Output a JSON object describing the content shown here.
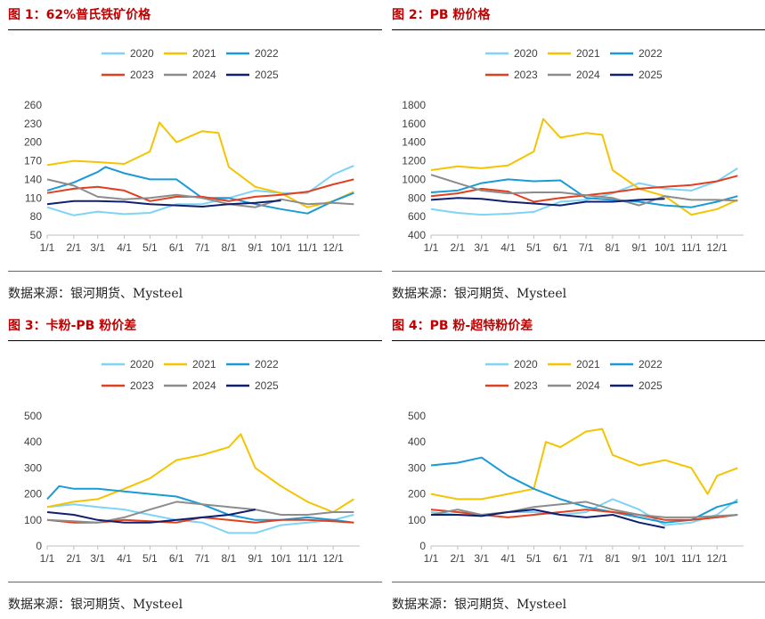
{
  "colors": {
    "2020": "#7fd3f5",
    "2021": "#f5c400",
    "2022": "#1b9ad6",
    "2023": "#e0401f",
    "2024": "#8c8c8c",
    "2025": "#102070",
    "title": "#c00000"
  },
  "source_text": "数据来源：银河期货、Mysteel",
  "chart_data": [
    {
      "type": "line",
      "title": "图 1：62%普氏铁矿价格",
      "source": "数据来源：银河期货、Mysteel",
      "x_ticks": [
        "1/1",
        "2/1",
        "3/1",
        "4/1",
        "5/1",
        "6/1",
        "7/1",
        "8/1",
        "9/1",
        "10/1",
        "11/1",
        "12/1"
      ],
      "y_ticks": [
        50,
        80,
        110,
        140,
        170,
        200,
        230,
        260
      ],
      "ylim": [
        50,
        260
      ],
      "legend": "top",
      "series": [
        {
          "name": "2020",
          "x": [
            "1/1",
            "2/1",
            "3/1",
            "4/1",
            "5/1",
            "6/1",
            "7/1",
            "8/1",
            "9/1",
            "10/1",
            "11/1",
            "12/1",
            "12/25"
          ],
          "values": [
            95,
            82,
            88,
            84,
            86,
            100,
            100,
            110,
            122,
            118,
            118,
            148,
            162
          ]
        },
        {
          "name": "2021",
          "x": [
            "1/1",
            "2/1",
            "3/1",
            "4/1",
            "5/1",
            "5/12",
            "6/1",
            "7/1",
            "7/20",
            "8/1",
            "9/1",
            "10/1",
            "11/1",
            "12/1",
            "12/25"
          ],
          "values": [
            163,
            170,
            168,
            165,
            185,
            232,
            200,
            218,
            215,
            160,
            128,
            118,
            95,
            105,
            120
          ]
        },
        {
          "name": "2022",
          "x": [
            "1/1",
            "2/1",
            "3/1",
            "3/10",
            "4/1",
            "5/1",
            "6/1",
            "7/1",
            "8/1",
            "9/1",
            "10/1",
            "11/1",
            "12/1",
            "12/25"
          ],
          "values": [
            122,
            135,
            152,
            160,
            150,
            140,
            140,
            110,
            110,
            100,
            92,
            85,
            105,
            118
          ]
        },
        {
          "name": "2023",
          "x": [
            "1/1",
            "2/1",
            "3/1",
            "4/1",
            "5/1",
            "6/1",
            "7/1",
            "8/1",
            "9/1",
            "10/1",
            "11/1",
            "12/1",
            "12/25"
          ],
          "values": [
            118,
            125,
            128,
            122,
            105,
            112,
            112,
            105,
            112,
            115,
            120,
            132,
            140
          ]
        },
        {
          "name": "2024",
          "x": [
            "1/1",
            "2/1",
            "3/1",
            "4/1",
            "5/1",
            "6/1",
            "7/1",
            "8/1",
            "9/1",
            "10/1",
            "11/1",
            "12/1",
            "12/25"
          ],
          "values": [
            140,
            130,
            112,
            108,
            110,
            115,
            110,
            100,
            95,
            108,
            100,
            102,
            100
          ]
        },
        {
          "name": "2025",
          "x": [
            "1/1",
            "2/1",
            "3/1",
            "4/1",
            "5/1",
            "6/1",
            "7/1",
            "8/1",
            "9/1",
            "10/1"
          ],
          "values": [
            100,
            105,
            105,
            104,
            100,
            98,
            96,
            100,
            102,
            106
          ]
        }
      ]
    },
    {
      "type": "line",
      "title": "图 2：PB 粉价格",
      "source": "数据来源：银河期货、Mysteel",
      "x_ticks": [
        "1/1",
        "2/1",
        "3/1",
        "4/1",
        "5/1",
        "6/1",
        "7/1",
        "8/1",
        "9/1",
        "10/1",
        "11/1",
        "12/1"
      ],
      "y_ticks": [
        400,
        600,
        800,
        1000,
        1200,
        1400,
        1600,
        1800
      ],
      "ylim": [
        400,
        1800
      ],
      "legend": "top",
      "series": [
        {
          "name": "2020",
          "x": [
            "1/1",
            "2/1",
            "3/1",
            "4/1",
            "5/1",
            "6/1",
            "7/1",
            "8/1",
            "9/1",
            "10/1",
            "11/1",
            "12/1",
            "12/25"
          ],
          "values": [
            680,
            640,
            620,
            630,
            650,
            760,
            780,
            850,
            960,
            900,
            880,
            980,
            1120
          ]
        },
        {
          "name": "2021",
          "x": [
            "1/1",
            "2/1",
            "3/1",
            "4/1",
            "5/1",
            "5/12",
            "6/1",
            "7/1",
            "7/20",
            "8/1",
            "9/1",
            "10/1",
            "11/1",
            "12/1",
            "12/25"
          ],
          "values": [
            1100,
            1140,
            1120,
            1150,
            1300,
            1650,
            1450,
            1500,
            1480,
            1100,
            900,
            820,
            620,
            680,
            780
          ]
        },
        {
          "name": "2022",
          "x": [
            "1/1",
            "2/1",
            "3/1",
            "4/1",
            "5/1",
            "6/1",
            "7/1",
            "8/1",
            "9/1",
            "10/1",
            "11/1",
            "12/1",
            "12/25"
          ],
          "values": [
            860,
            880,
            960,
            1000,
            980,
            990,
            800,
            780,
            760,
            720,
            700,
            760,
            820
          ]
        },
        {
          "name": "2023",
          "x": [
            "1/1",
            "2/1",
            "3/1",
            "4/1",
            "5/1",
            "6/1",
            "7/1",
            "8/1",
            "9/1",
            "10/1",
            "11/1",
            "12/1",
            "12/25"
          ],
          "values": [
            820,
            850,
            900,
            870,
            760,
            800,
            830,
            860,
            900,
            920,
            940,
            980,
            1040
          ]
        },
        {
          "name": "2024",
          "x": [
            "1/1",
            "2/1",
            "3/1",
            "4/1",
            "5/1",
            "6/1",
            "7/1",
            "8/1",
            "9/1",
            "10/1",
            "11/1",
            "12/1",
            "12/25"
          ],
          "values": [
            1050,
            960,
            880,
            850,
            860,
            860,
            830,
            800,
            720,
            820,
            780,
            780,
            770
          ]
        },
        {
          "name": "2025",
          "x": [
            "1/1",
            "2/1",
            "3/1",
            "4/1",
            "5/1",
            "6/1",
            "7/1",
            "8/1",
            "9/1",
            "10/1"
          ],
          "values": [
            780,
            800,
            790,
            760,
            740,
            720,
            760,
            760,
            780,
            790
          ]
        }
      ]
    },
    {
      "type": "line",
      "title": "图 3：卡粉-PB 粉价差",
      "source": "数据来源：银河期货、Mysteel",
      "x_ticks": [
        "1/1",
        "2/1",
        "3/1",
        "4/1",
        "5/1",
        "6/1",
        "7/1",
        "8/1",
        "9/1",
        "10/1",
        "11/1",
        "12/1"
      ],
      "y_ticks": [
        0,
        100,
        200,
        300,
        400,
        500
      ],
      "ylim": [
        0,
        500
      ],
      "legend": "top",
      "series": [
        {
          "name": "2020",
          "x": [
            "1/1",
            "2/1",
            "3/1",
            "4/1",
            "5/1",
            "6/1",
            "7/1",
            "8/1",
            "9/1",
            "10/1",
            "11/1",
            "12/1",
            "12/25"
          ],
          "values": [
            150,
            160,
            150,
            140,
            120,
            100,
            90,
            50,
            50,
            80,
            90,
            100,
            120
          ]
        },
        {
          "name": "2021",
          "x": [
            "1/1",
            "2/1",
            "3/1",
            "4/1",
            "5/1",
            "6/1",
            "7/1",
            "8/1",
            "8/15",
            "9/1",
            "10/1",
            "11/1",
            "12/1",
            "12/25"
          ],
          "values": [
            150,
            170,
            180,
            220,
            260,
            330,
            350,
            380,
            430,
            300,
            230,
            170,
            130,
            180
          ]
        },
        {
          "name": "2022",
          "x": [
            "1/1",
            "1/15",
            "2/1",
            "3/1",
            "4/1",
            "5/1",
            "6/1",
            "7/1",
            "8/1",
            "9/1",
            "10/1",
            "11/1",
            "12/1",
            "12/25"
          ],
          "values": [
            180,
            230,
            220,
            220,
            210,
            200,
            190,
            160,
            120,
            100,
            100,
            110,
            100,
            90
          ]
        },
        {
          "name": "2023",
          "x": [
            "1/1",
            "2/1",
            "3/1",
            "4/1",
            "5/1",
            "6/1",
            "7/1",
            "8/1",
            "9/1",
            "10/1",
            "11/1",
            "12/1",
            "12/25"
          ],
          "values": [
            100,
            90,
            90,
            100,
            95,
            90,
            110,
            100,
            90,
            100,
            100,
            95,
            90
          ]
        },
        {
          "name": "2024",
          "x": [
            "1/1",
            "2/1",
            "3/1",
            "4/1",
            "5/1",
            "6/1",
            "7/1",
            "8/1",
            "9/1",
            "10/1",
            "11/1",
            "12/1",
            "12/25"
          ],
          "values": [
            100,
            95,
            90,
            110,
            140,
            170,
            160,
            150,
            140,
            120,
            120,
            130,
            130
          ]
        },
        {
          "name": "2025",
          "x": [
            "1/1",
            "2/1",
            "3/1",
            "4/1",
            "5/1",
            "6/1",
            "7/1",
            "8/1",
            "9/1"
          ],
          "values": [
            130,
            120,
            100,
            90,
            90,
            100,
            110,
            120,
            140
          ]
        }
      ]
    },
    {
      "type": "line",
      "title": "图 4：PB 粉-超特粉价差",
      "source": "数据来源：银河期货、Mysteel",
      "x_ticks": [
        "1/1",
        "2/1",
        "3/1",
        "4/1",
        "5/1",
        "6/1",
        "7/1",
        "8/1",
        "9/1",
        "10/1",
        "11/1",
        "12/1"
      ],
      "y_ticks": [
        0,
        100,
        200,
        300,
        400,
        500
      ],
      "ylim": [
        0,
        500
      ],
      "legend": "top",
      "series": [
        {
          "name": "2020",
          "x": [
            "1/1",
            "2/1",
            "3/1",
            "4/1",
            "5/1",
            "6/1",
            "7/1",
            "8/1",
            "9/1",
            "10/1",
            "11/1",
            "12/1",
            "12/25"
          ],
          "values": [
            130,
            120,
            120,
            130,
            130,
            120,
            130,
            180,
            140,
            80,
            90,
            120,
            180
          ]
        },
        {
          "name": "2021",
          "x": [
            "1/1",
            "2/1",
            "3/1",
            "4/1",
            "5/1",
            "5/15",
            "6/1",
            "7/1",
            "7/20",
            "8/1",
            "9/1",
            "10/1",
            "11/1",
            "11/20",
            "12/1",
            "12/25"
          ],
          "values": [
            200,
            180,
            180,
            200,
            220,
            400,
            380,
            440,
            450,
            350,
            310,
            330,
            300,
            200,
            270,
            300
          ]
        },
        {
          "name": "2022",
          "x": [
            "1/1",
            "2/1",
            "3/1",
            "4/1",
            "5/1",
            "6/1",
            "7/1",
            "8/1",
            "9/1",
            "10/1",
            "11/1",
            "12/1",
            "12/25"
          ],
          "values": [
            310,
            320,
            340,
            270,
            220,
            180,
            150,
            130,
            110,
            90,
            100,
            150,
            170
          ]
        },
        {
          "name": "2023",
          "x": [
            "1/1",
            "2/1",
            "3/1",
            "4/1",
            "5/1",
            "6/1",
            "7/1",
            "8/1",
            "9/1",
            "10/1",
            "11/1",
            "12/1",
            "12/25"
          ],
          "values": [
            140,
            130,
            120,
            110,
            120,
            130,
            140,
            130,
            120,
            100,
            100,
            110,
            120
          ]
        },
        {
          "name": "2024",
          "x": [
            "1/1",
            "2/1",
            "3/1",
            "4/1",
            "5/1",
            "6/1",
            "7/1",
            "8/1",
            "9/1",
            "10/1",
            "11/1",
            "12/1",
            "12/25"
          ],
          "values": [
            120,
            140,
            120,
            130,
            150,
            160,
            170,
            140,
            120,
            110,
            110,
            115,
            120
          ]
        },
        {
          "name": "2025",
          "x": [
            "1/1",
            "2/1",
            "3/1",
            "4/1",
            "5/1",
            "6/1",
            "7/1",
            "8/1",
            "9/1",
            "10/1"
          ],
          "values": [
            120,
            120,
            115,
            130,
            140,
            120,
            110,
            120,
            90,
            70
          ]
        }
      ]
    }
  ]
}
